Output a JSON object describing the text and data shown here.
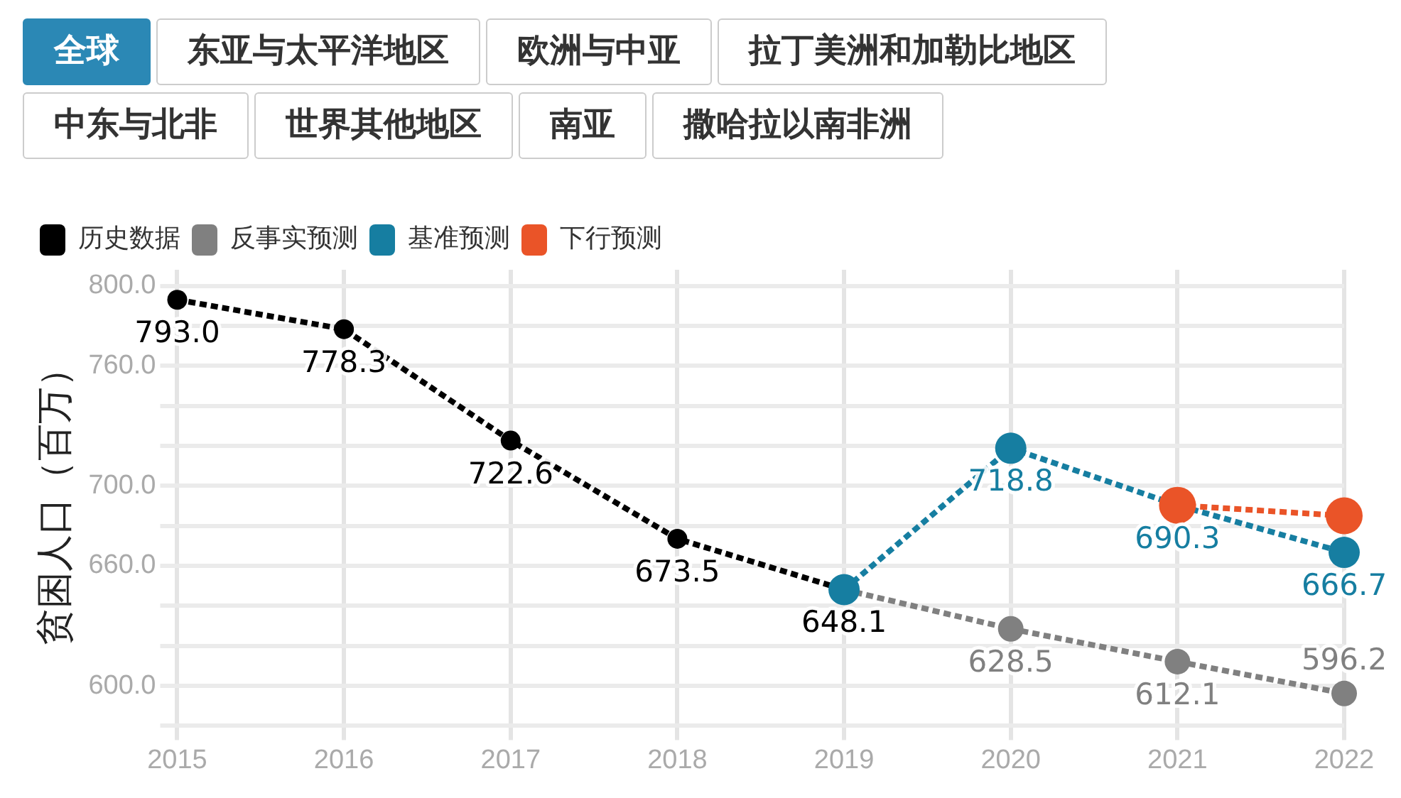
{
  "chart_data": {
    "type": "line",
    "ylabel": "贫困人口（百万）",
    "annotations": [
      "全球",
      "东亚与太平洋地区",
      "欧洲与中亚",
      "拉丁美洲和加勒比地区",
      "中东与北非",
      "世界其他地区",
      "南亚",
      "撒哈拉以南非洲"
    ],
    "categories": [
      "2015",
      "2016",
      "2017",
      "2018",
      "2019",
      "2020",
      "2021",
      "2022"
    ],
    "series": [
      {
        "name": "历史数据",
        "color": "#000000",
        "values": [
          793.0,
          778.3,
          722.6,
          673.5,
          648.1,
          null,
          null,
          null
        ],
        "value_labels": [
          "793.0",
          "778.3",
          "722.6",
          "673.5",
          "648.1",
          null,
          null,
          null
        ]
      },
      {
        "name": "反事实预测",
        "color": "#808080",
        "values": [
          null,
          null,
          null,
          null,
          648.1,
          628.5,
          612.1,
          596.2
        ],
        "value_labels": [
          null,
          null,
          null,
          null,
          null,
          "628.5",
          "612.1",
          "596.2"
        ]
      },
      {
        "name": "基准预测",
        "color": "#167ea1",
        "values": [
          null,
          null,
          null,
          null,
          648.1,
          718.8,
          690.3,
          666.7
        ],
        "value_labels": [
          null,
          null,
          null,
          null,
          null,
          "718.8",
          "690.3",
          "666.7"
        ]
      },
      {
        "name": "下行预测",
        "color": "#ea5428",
        "values": [
          null,
          null,
          null,
          null,
          null,
          null,
          690.3,
          685
        ]
      }
    ],
    "ylim": [
      580,
      808
    ],
    "yticks": [
      {
        "value": 580,
        "label": null
      },
      {
        "value": 600,
        "label": "600.0"
      },
      {
        "value": 620,
        "label": null
      },
      {
        "value": 640,
        "label": null
      },
      {
        "value": 660,
        "label": "660.0"
      },
      {
        "value": 680,
        "label": null
      },
      {
        "value": 700,
        "label": "700.0"
      },
      {
        "value": 720,
        "label": null
      },
      {
        "value": 740,
        "label": null
      },
      {
        "value": 760,
        "label": "760.0"
      },
      {
        "value": 780,
        "label": null
      },
      {
        "value": 800,
        "label": "800.0"
      }
    ],
    "grid": true,
    "legend": "top left",
    "marker": "circle",
    "line_style": "dotted"
  }
}
